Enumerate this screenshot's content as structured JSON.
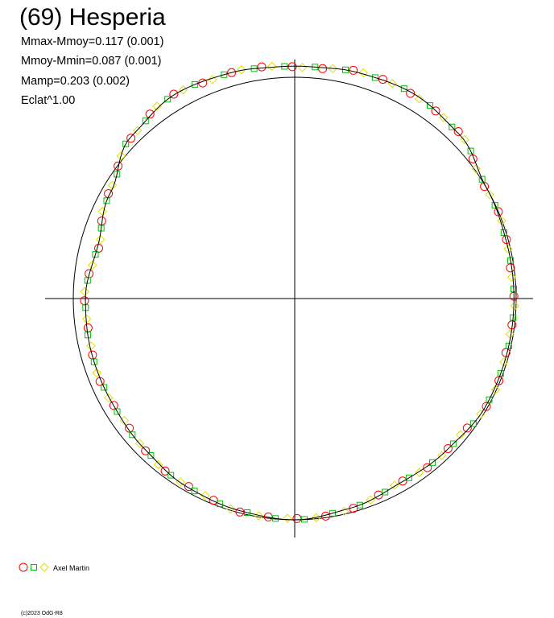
{
  "chart_data": {
    "type": "scatter",
    "title": "(69) Hesperia",
    "stats": [
      "Mmax-Mmoy=0.117 (0.001)",
      "Mmoy-Mmin=0.087 (0.001)",
      "Mamp=0.203 (0.002)",
      "Eclat^1.00"
    ],
    "reference_circle_radius": 1.0,
    "shape_curve": [
      [
        0,
        0.99
      ],
      [
        15,
        0.99
      ],
      [
        30,
        1.0
      ],
      [
        45,
        1.05
      ],
      [
        60,
        1.07
      ],
      [
        75,
        1.06
      ],
      [
        85,
        1.05
      ],
      [
        95,
        1.05
      ],
      [
        105,
        1.06
      ],
      [
        120,
        1.07
      ],
      [
        135,
        1.04
      ],
      [
        150,
        0.96
      ],
      [
        165,
        0.92
      ],
      [
        180,
        0.945
      ],
      [
        195,
        0.95
      ],
      [
        210,
        0.95
      ],
      [
        225,
        0.96
      ],
      [
        240,
        0.98
      ],
      [
        255,
        0.99
      ],
      [
        270,
        1.0
      ],
      [
        285,
        0.98
      ],
      [
        300,
        0.96
      ],
      [
        315,
        0.97
      ],
      [
        330,
        0.99
      ],
      [
        345,
        0.99
      ]
    ],
    "legend": {
      "markers": [
        "circle",
        "square",
        "diamond"
      ],
      "label": "Axel Martin"
    },
    "colors": {
      "circle": "#ff0000",
      "square": "#00c000",
      "diamond": "#e0e000",
      "curve": "#000000",
      "axes": "#000000"
    }
  },
  "footer": {
    "copyright": "(c)2023 OdG-R8"
  }
}
